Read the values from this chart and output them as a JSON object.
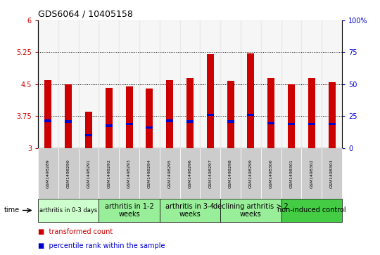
{
  "title": "GDS6064 / 10405158",
  "samples": [
    "GSM1498289",
    "GSM1498290",
    "GSM1498291",
    "GSM1498292",
    "GSM1498293",
    "GSM1498294",
    "GSM1498295",
    "GSM1498296",
    "GSM1498297",
    "GSM1498298",
    "GSM1498299",
    "GSM1498300",
    "GSM1498301",
    "GSM1498302",
    "GSM1498303"
  ],
  "transformed_count": [
    4.6,
    4.5,
    3.85,
    4.42,
    4.45,
    4.4,
    4.6,
    4.65,
    5.2,
    4.58,
    5.22,
    4.65,
    4.5,
    4.65,
    4.55
  ],
  "percentile_rank": [
    3.64,
    3.62,
    3.3,
    3.52,
    3.56,
    3.48,
    3.64,
    3.62,
    3.78,
    3.62,
    3.78,
    3.58,
    3.56,
    3.56,
    3.56
  ],
  "bar_bottom": 3.0,
  "ylim_left": [
    3.0,
    6.0
  ],
  "ylim_right": [
    0,
    100
  ],
  "yticks_left": [
    3.0,
    3.75,
    4.5,
    5.25,
    6.0
  ],
  "ytick_labels_left": [
    "3",
    "3.75",
    "4.5",
    "5.25",
    "6"
  ],
  "yticks_right": [
    0,
    25,
    50,
    75,
    100
  ],
  "ytick_labels_right": [
    "0",
    "25",
    "50",
    "75",
    "100%"
  ],
  "groups": [
    {
      "label": "arthritis in 0-3 days",
      "start": 0,
      "end": 3,
      "color": "#ccffcc",
      "fontsize": 6
    },
    {
      "label": "arthritis in 1-2\nweeks",
      "start": 3,
      "end": 6,
      "color": "#99ee99",
      "fontsize": 7
    },
    {
      "label": "arthritis in 3-4\nweeks",
      "start": 6,
      "end": 9,
      "color": "#99ee99",
      "fontsize": 7
    },
    {
      "label": "declining arthritis > 2\nweeks",
      "start": 9,
      "end": 12,
      "color": "#99ee99",
      "fontsize": 7
    },
    {
      "label": "non-induced control",
      "start": 12,
      "end": 15,
      "color": "#44cc44",
      "fontsize": 7
    }
  ],
  "bar_color": "#cc0000",
  "percentile_color": "#0000cc",
  "bar_width": 0.35,
  "left_tick_color": "#cc0000",
  "right_tick_color": "#0000cc",
  "bg_color": "#ffffff",
  "dotted_line_color": "#000000",
  "sample_box_color": "#cccccc"
}
